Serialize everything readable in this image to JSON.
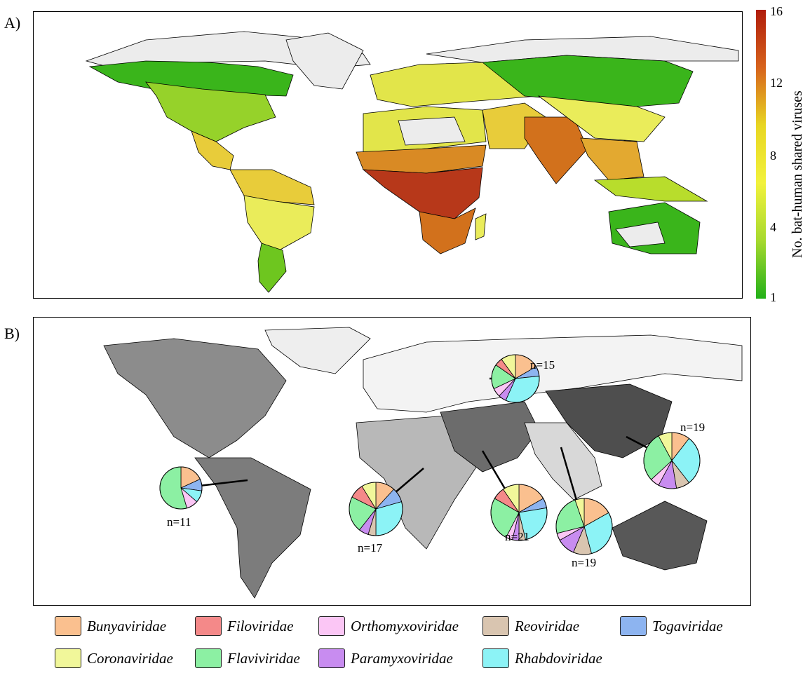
{
  "panel_a": {
    "label": "A)",
    "colorbar": {
      "title": "No. bat-human shared viruses",
      "ticks": [
        "16",
        "12",
        "8",
        "4",
        "1"
      ],
      "colors": [
        "#b01c0b",
        "#d7631c",
        "#e8d622",
        "#f2f23c",
        "#a6d92e",
        "#22b018"
      ]
    },
    "region_levels": {
      "arctic": 0,
      "boreal_north_america": 3,
      "temperate_north_america": 5,
      "central_america": 9,
      "northern_south_america": 9,
      "amazon": 8,
      "southern_south_america": 4,
      "europe": 7,
      "north_africa": 7,
      "sahel": 11,
      "central_africa": 15,
      "southern_africa": 12,
      "madagascar": 8,
      "middle_east": 9,
      "india": 12,
      "siberia": 3,
      "china": 8,
      "southeast_asia": 10,
      "indonesia": 6,
      "australia": 3,
      "australia_interior": 0
    },
    "level_colors": {
      "0": "#ececec",
      "3": "#3ab51b",
      "4": "#6ec61f",
      "5": "#96d22a",
      "6": "#b8dd2c",
      "7": "#e2e54a",
      "8": "#eaec5a",
      "9": "#e8cc3a",
      "10": "#e3a930",
      "11": "#d98a24",
      "12": "#d2711c",
      "15": "#b7381a"
    }
  },
  "panel_b": {
    "label": "B)",
    "region_colors": {
      "north_america": "#8c8c8c",
      "south_america": "#7c7c7c",
      "europe_russia": "#f3f3f3",
      "africa_west": "#b8b8b8",
      "middle_east": "#6c6c6c",
      "south_asia": "#d8d8d8",
      "east_asia": "#4e4e4e",
      "australia": "#585858",
      "greenland": "#eeeeee"
    },
    "pies": [
      {
        "label": "n=11",
        "slices": [
          {
            "family": "Bunyaviridae",
            "value": 2
          },
          {
            "family": "Togaviridae",
            "value": 1
          },
          {
            "family": "Rhabdoviridae",
            "value": 1
          },
          {
            "family": "Orthomyxoviridae",
            "value": 1
          },
          {
            "family": "Flaviviridae",
            "value": 6
          }
        ]
      },
      {
        "label": "n=17",
        "slices": [
          {
            "family": "Bunyaviridae",
            "value": 2
          },
          {
            "family": "Togaviridae",
            "value": 1.5
          },
          {
            "family": "Rhabdoviridae",
            "value": 5
          },
          {
            "family": "Reoviridae",
            "value": 0.8
          },
          {
            "family": "Paramyxoviridae",
            "value": 1
          },
          {
            "family": "Flaviviridae",
            "value": 3.7
          },
          {
            "family": "Filoviridae",
            "value": 1.5
          },
          {
            "family": "Coronaviridae",
            "value": 1.5
          }
        ]
      },
      {
        "label": "n=21",
        "slices": [
          {
            "family": "Bunyaviridae",
            "value": 3.5
          },
          {
            "family": "Togaviridae",
            "value": 1.2
          },
          {
            "family": "Rhabdoviridae",
            "value": 5
          },
          {
            "family": "Reoviridae",
            "value": 0.8
          },
          {
            "family": "Paramyxoviridae",
            "value": 0.8
          },
          {
            "family": "Orthomyxoviridae",
            "value": 0.8
          },
          {
            "family": "Flaviviridae",
            "value": 5.4
          },
          {
            "family": "Filoviridae",
            "value": 1.5
          },
          {
            "family": "Coronaviridae",
            "value": 2
          }
        ]
      },
      {
        "label": "n=19",
        "slices": [
          {
            "family": "Bunyaviridae",
            "value": 3.2
          },
          {
            "family": "Rhabdoviridae",
            "value": 5.5
          },
          {
            "family": "Reoviridae",
            "value": 2
          },
          {
            "family": "Paramyxoviridae",
            "value": 2
          },
          {
            "family": "Orthomyxoviridae",
            "value": 0.8
          },
          {
            "family": "Flaviviridae",
            "value": 4.5
          },
          {
            "family": "Coronaviridae",
            "value": 1
          }
        ]
      },
      {
        "label": "n=15",
        "slices": [
          {
            "family": "Bunyaviridae",
            "value": 2.5
          },
          {
            "family": "Togaviridae",
            "value": 1
          },
          {
            "family": "Rhabdoviridae",
            "value": 5
          },
          {
            "family": "Paramyxoviridae",
            "value": 0.8
          },
          {
            "family": "Orthomyxoviridae",
            "value": 0.9
          },
          {
            "family": "Flaviviridae",
            "value": 2.5
          },
          {
            "family": "Filoviridae",
            "value": 0.8
          },
          {
            "family": "Coronaviridae",
            "value": 1.5
          }
        ]
      },
      {
        "label": "n=19",
        "slices": [
          {
            "family": "Bunyaviridae",
            "value": 2
          },
          {
            "family": "Rhabdoviridae",
            "value": 5.5
          },
          {
            "family": "Reoviridae",
            "value": 1.5
          },
          {
            "family": "Paramyxoviridae",
            "value": 2
          },
          {
            "family": "Orthomyxoviridae",
            "value": 1
          },
          {
            "family": "Flaviviridae",
            "value": 5.5
          },
          {
            "family": "Coronaviridae",
            "value": 1.5
          }
        ]
      }
    ]
  },
  "legend": [
    {
      "name": "Bunyaviridae",
      "color": "#fac08f"
    },
    {
      "name": "Filoviridae",
      "color": "#f48989"
    },
    {
      "name": "Orthomyxoviridae",
      "color": "#fbc6f5"
    },
    {
      "name": "Reoviridae",
      "color": "#d9c5b0"
    },
    {
      "name": "Togaviridae",
      "color": "#8db4f0"
    },
    {
      "name": "Coronaviridae",
      "color": "#f1f79a"
    },
    {
      "name": "Flaviviridae",
      "color": "#8cf0a3"
    },
    {
      "name": "Paramyxoviridae",
      "color": "#c88cf0"
    },
    {
      "name": "Rhabdoviridae",
      "color": "#8cf3f6"
    }
  ]
}
